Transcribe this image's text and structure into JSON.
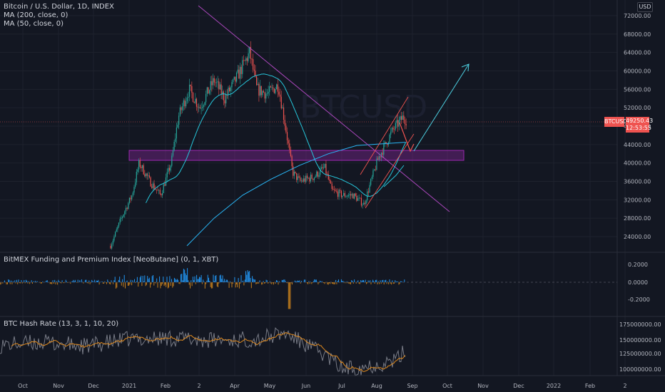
{
  "symbol": {
    "title": "Bitcoin / U.S. Dollar, 1D, INDEX",
    "indicator_ma200": "MA (200, close, 0)",
    "indicator_ma50": "MA (50, close, 0)",
    "currency": "USD",
    "last_price_label": "BTCUSD",
    "last_price": "49250.43",
    "countdown": "12:53:55"
  },
  "panes": {
    "funding_title": "BitMEX Funding and Premium Index [NeoButane] (0, 1, XBT)",
    "hashrate_title": "BTC Hash Rate (13, 3, 1, 10, 20)"
  },
  "price_axis": [
    "72000.00",
    "68000.00",
    "64000.00",
    "60000.00",
    "56000.00",
    "52000.00",
    "48000.00",
    "44000.00",
    "40000.00",
    "36000.00",
    "32000.00",
    "28000.00",
    "24000.00"
  ],
  "funding_axis": [
    "0.2000",
    "0.0000",
    "-0.2000"
  ],
  "hashrate_axis": [
    "175000000.00",
    "150000000.00",
    "125000000.00",
    "100000000.00"
  ],
  "time_axis": [
    "Oct",
    "Nov",
    "Dec",
    "2021",
    "Feb",
    "2",
    "Apr",
    "May",
    "Jun",
    "Jul",
    "Aug",
    "Sep",
    "Oct",
    "Nov",
    "Dec",
    "2022",
    "Feb",
    "2"
  ],
  "colors": {
    "background": "#131722",
    "up": "#26a69a",
    "down": "#ef5350",
    "ma50": "#26c6da",
    "ma200": "#29b6f6",
    "trendline": "#ab47bc",
    "zone": "#9c27b0",
    "arrow": "#4dd0e1",
    "funding_pos": "#2196f3",
    "funding_neg": "#c67f1c",
    "hash_line": "#787b86",
    "hash_ma": "#e08a1e"
  }
}
